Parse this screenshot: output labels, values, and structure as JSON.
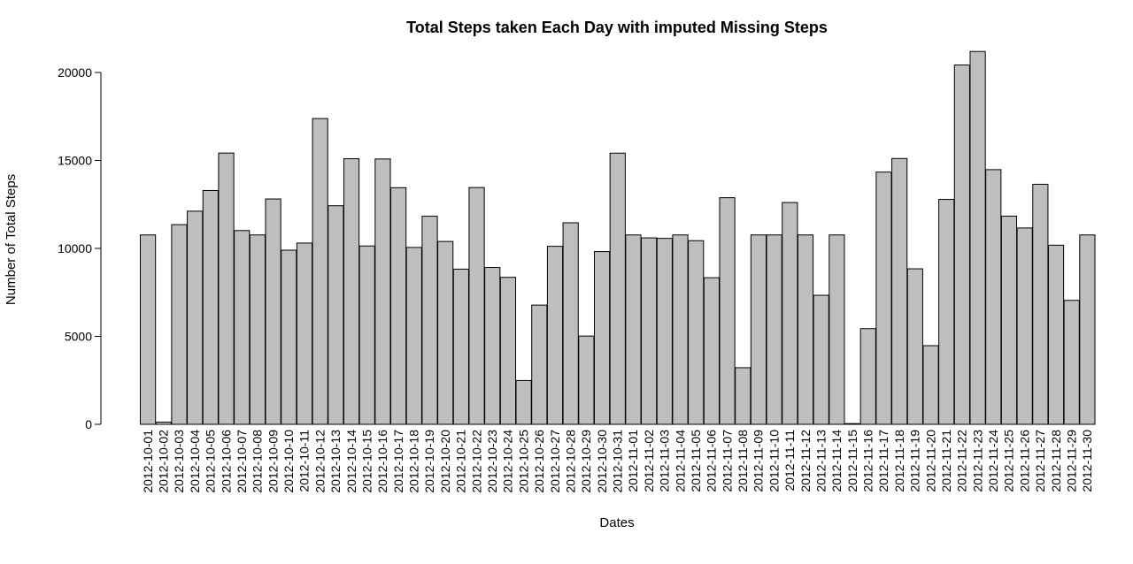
{
  "chart_data": {
    "type": "bar",
    "title": "Total Steps taken Each Day with imputed Missing Steps",
    "xlabel": "Dates",
    "ylabel": "Number of Total Steps",
    "ylim": [
      0,
      21500
    ],
    "yticks": [
      0,
      5000,
      10000,
      15000,
      20000
    ],
    "grid": false,
    "bar_color": "#bebebe",
    "categories": [
      "2012-10-01",
      "2012-10-02",
      "2012-10-03",
      "2012-10-04",
      "2012-10-05",
      "2012-10-06",
      "2012-10-07",
      "2012-10-08",
      "2012-10-09",
      "2012-10-10",
      "2012-10-11",
      "2012-10-12",
      "2012-10-13",
      "2012-10-14",
      "2012-10-15",
      "2012-10-16",
      "2012-10-17",
      "2012-10-18",
      "2012-10-19",
      "2012-10-20",
      "2012-10-21",
      "2012-10-22",
      "2012-10-23",
      "2012-10-24",
      "2012-10-25",
      "2012-10-26",
      "2012-10-27",
      "2012-10-28",
      "2012-10-29",
      "2012-10-30",
      "2012-10-31",
      "2012-11-01",
      "2012-11-02",
      "2012-11-03",
      "2012-11-04",
      "2012-11-05",
      "2012-11-06",
      "2012-11-07",
      "2012-11-08",
      "2012-11-09",
      "2012-11-10",
      "2012-11-11",
      "2012-11-12",
      "2012-11-13",
      "2012-11-14",
      "2012-11-15",
      "2012-11-16",
      "2012-11-17",
      "2012-11-18",
      "2012-11-19",
      "2012-11-20",
      "2012-11-21",
      "2012-11-22",
      "2012-11-23",
      "2012-11-24",
      "2012-11-25",
      "2012-11-26",
      "2012-11-27",
      "2012-11-28",
      "2012-11-29",
      "2012-11-30"
    ],
    "values": [
      10766,
      126,
      11352,
      12116,
      13294,
      15420,
      11015,
      10766,
      12811,
      9900,
      10304,
      17382,
      12426,
      15098,
      10139,
      15084,
      13452,
      10056,
      11829,
      10395,
      8821,
      13460,
      8918,
      8355,
      2492,
      6778,
      10119,
      11458,
      5018,
      9819,
      15414,
      10766,
      10600,
      10571,
      10766,
      10439,
      8334,
      12883,
      3219,
      10766,
      10766,
      12608,
      10765,
      7336,
      10766,
      41,
      5441,
      14339,
      15110,
      8841,
      4472,
      12787,
      20427,
      21194,
      14478,
      11834,
      11162,
      13646,
      10183,
      7047,
      10766
    ]
  }
}
